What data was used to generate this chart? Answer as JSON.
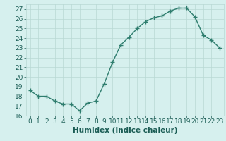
{
  "x": [
    0,
    1,
    2,
    3,
    4,
    5,
    6,
    7,
    8,
    9,
    10,
    11,
    12,
    13,
    14,
    15,
    16,
    17,
    18,
    19,
    20,
    21,
    22,
    23
  ],
  "y": [
    18.6,
    18.0,
    18.0,
    17.5,
    17.2,
    17.2,
    16.5,
    17.3,
    17.5,
    19.3,
    21.5,
    23.3,
    24.1,
    25.0,
    25.7,
    26.1,
    26.3,
    26.8,
    27.1,
    27.1,
    26.2,
    24.3,
    23.8,
    23.0
  ],
  "line_color": "#2e7d6e",
  "marker": "+",
  "marker_size": 4,
  "linewidth": 1.0,
  "bg_color": "#d6f0ee",
  "grid_color": "#b8d8d4",
  "xlabel": "Humidex (Indice chaleur)",
  "ylim": [
    16,
    27.5
  ],
  "yticks": [
    16,
    17,
    18,
    19,
    20,
    21,
    22,
    23,
    24,
    25,
    26,
    27
  ],
  "xticks": [
    0,
    1,
    2,
    3,
    4,
    5,
    6,
    7,
    8,
    9,
    10,
    11,
    12,
    13,
    14,
    15,
    16,
    17,
    18,
    19,
    20,
    21,
    22,
    23
  ],
  "tick_label_fontsize": 6.5,
  "xlabel_fontsize": 7.5,
  "tick_color": "#1a5c54",
  "label_color": "#1a5c54"
}
